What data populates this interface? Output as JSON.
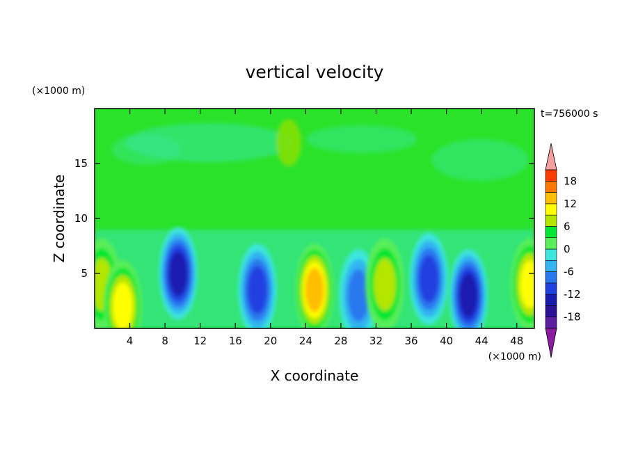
{
  "chart_data": {
    "type": "heatmap",
    "title": "vertical velocity",
    "xlabel": "X coordinate",
    "ylabel": "Z coordinate",
    "x_unit": "(×1000 m)",
    "y_unit": "(×1000 m)",
    "time_label": "t=756000 s",
    "xlim": [
      0,
      50
    ],
    "ylim": [
      0,
      20
    ],
    "x_ticks": [
      4,
      8,
      12,
      16,
      20,
      24,
      28,
      32,
      36,
      40,
      44,
      48
    ],
    "y_ticks": [
      5,
      10,
      15
    ],
    "colorbar": {
      "levels": [
        -21,
        -18,
        -15,
        -12,
        -9,
        -6,
        -3,
        0,
        3,
        6,
        9,
        12,
        15,
        18,
        21
      ],
      "tick_labels": [
        "18",
        "12",
        "6",
        "0",
        "-6",
        "-12",
        "-18"
      ],
      "tick_values": [
        18,
        12,
        6,
        0,
        -6,
        -12,
        -18
      ],
      "colors": [
        "#8c1aa0",
        "#5b1fa0",
        "#2a1296",
        "#1a1ab0",
        "#2040e0",
        "#2a78ee",
        "#32b4f0",
        "#3ce6dc",
        "#5aee5a",
        "#00e632",
        "#b4e600",
        "#ffff00",
        "#ffbe00",
        "#ff7800",
        "#ff3c00",
        "#e60000",
        "#f4a0a0"
      ],
      "extend": "both"
    },
    "features": [
      {
        "x": 0.8,
        "z": 4.0,
        "value": 9
      },
      {
        "x": 3.2,
        "z": 2.0,
        "value": 12
      },
      {
        "x": 9.5,
        "z": 5.0,
        "value": -13
      },
      {
        "x": 18.5,
        "z": 3.5,
        "value": -12
      },
      {
        "x": 25.0,
        "z": 3.5,
        "value": 14
      },
      {
        "x": 30.0,
        "z": 3.0,
        "value": -7
      },
      {
        "x": 33.0,
        "z": 4.0,
        "value": 9
      },
      {
        "x": 38.0,
        "z": 4.5,
        "value": -12
      },
      {
        "x": 42.5,
        "z": 3.0,
        "value": -15
      },
      {
        "x": 49.5,
        "z": 4.0,
        "value": 10
      }
    ]
  }
}
